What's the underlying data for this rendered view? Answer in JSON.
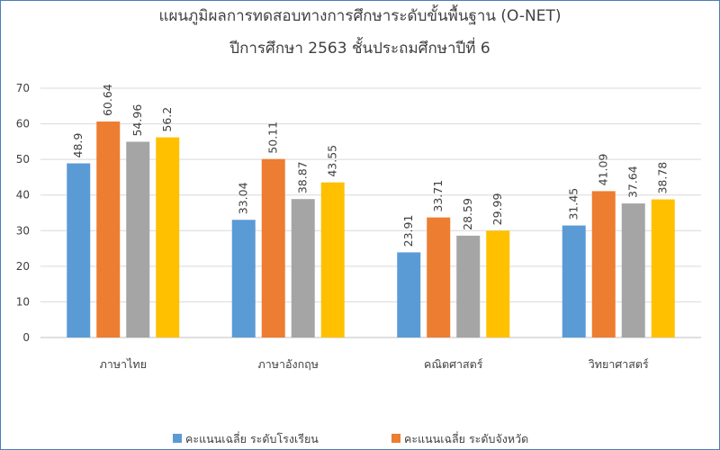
{
  "chart_data": {
    "type": "bar",
    "title": "แผนภูมิผลการทดสอบทางการศึกษาระดับขั้นพื้นฐาน (O-NET)",
    "subtitle": "ปีการศึกษา 2563 ชั้นประถมศึกษาปีที่ 6",
    "categories": [
      "ภาษาไทย",
      "ภาษาอังกฤษ",
      "คณิตศาสตร์",
      "วิทยาศาสตร์"
    ],
    "series": [
      {
        "name": "คะแนนเฉลี่ย ระดับโรงเรียน",
        "color": "#5b9bd5",
        "values": [
          48.9,
          33.04,
          23.91,
          31.45
        ],
        "labels": [
          "48.9",
          "33.04",
          "23.91",
          "31.45"
        ]
      },
      {
        "name": "คะแนนเฉลี่ย ระดับจังหวัด",
        "color": "#ed7d31",
        "values": [
          60.64,
          50.11,
          33.71,
          41.09
        ],
        "labels": [
          "60.64",
          "50.11",
          "33.71",
          "41.09"
        ]
      },
      {
        "name": "",
        "color": "#a5a5a5",
        "values": [
          54.96,
          38.87,
          28.59,
          37.64
        ],
        "labels": [
          "54.96",
          "38.87",
          "28.59",
          "37.64"
        ]
      },
      {
        "name": "",
        "color": "#ffc000",
        "values": [
          56.2,
          43.55,
          29.99,
          38.78
        ],
        "labels": [
          "56.2",
          "43.55",
          "29.99",
          "38.78"
        ]
      }
    ],
    "ylim": [
      0,
      70
    ],
    "yticks": [
      0,
      10,
      20,
      30,
      40,
      50,
      60,
      70
    ],
    "ytick_labels": [
      "0",
      "10",
      "20",
      "30",
      "40",
      "50",
      "60",
      "70"
    ],
    "grid": true,
    "legend_position": "bottom",
    "data_labels": "rotated-vertical"
  }
}
